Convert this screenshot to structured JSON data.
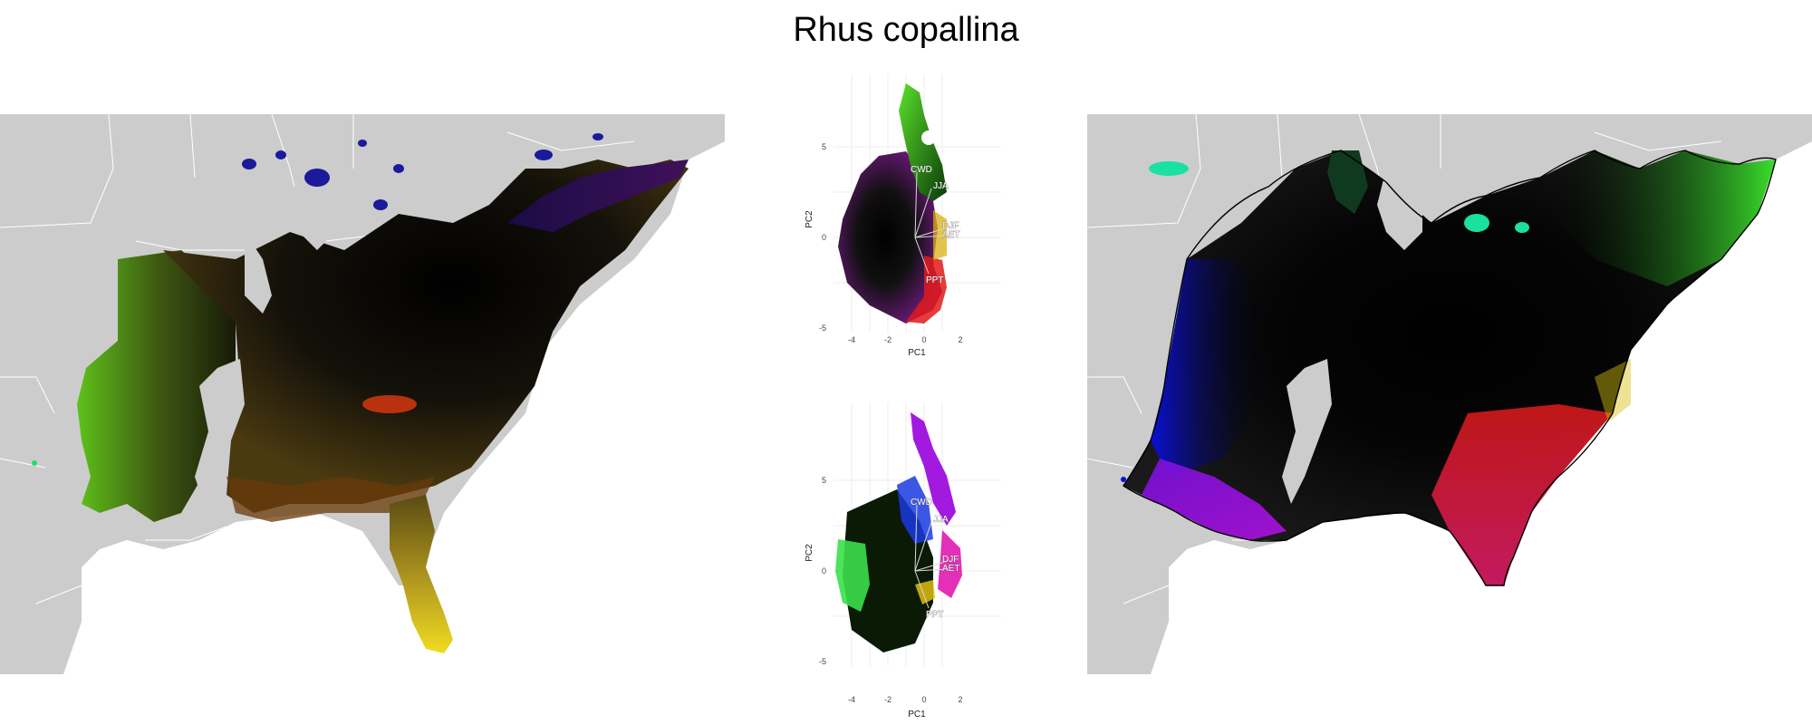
{
  "title": "Rhus copallina",
  "pca_plots": [
    {
      "xlabel": "PC1",
      "ylabel": "PC2",
      "x_ticks": [
        "-4",
        "-2",
        "0",
        "2"
      ],
      "y_ticks": [
        "5",
        "0",
        "-5"
      ],
      "vectors": [
        "CWD",
        "JJA",
        "DJF",
        "AET",
        "PPT"
      ]
    },
    {
      "xlabel": "PC1",
      "ylabel": "PC2",
      "x_ticks": [
        "-4",
        "-2",
        "0",
        "2"
      ],
      "y_ticks": [
        "5",
        "0",
        "-5"
      ],
      "vectors": [
        "CWD",
        "JJA",
        "DJF",
        "AET",
        "PPT"
      ]
    }
  ],
  "colors": {
    "land": "#cccccc",
    "borders": "#ffffff",
    "water": "#ffffff",
    "hull_outline": "#000000"
  }
}
